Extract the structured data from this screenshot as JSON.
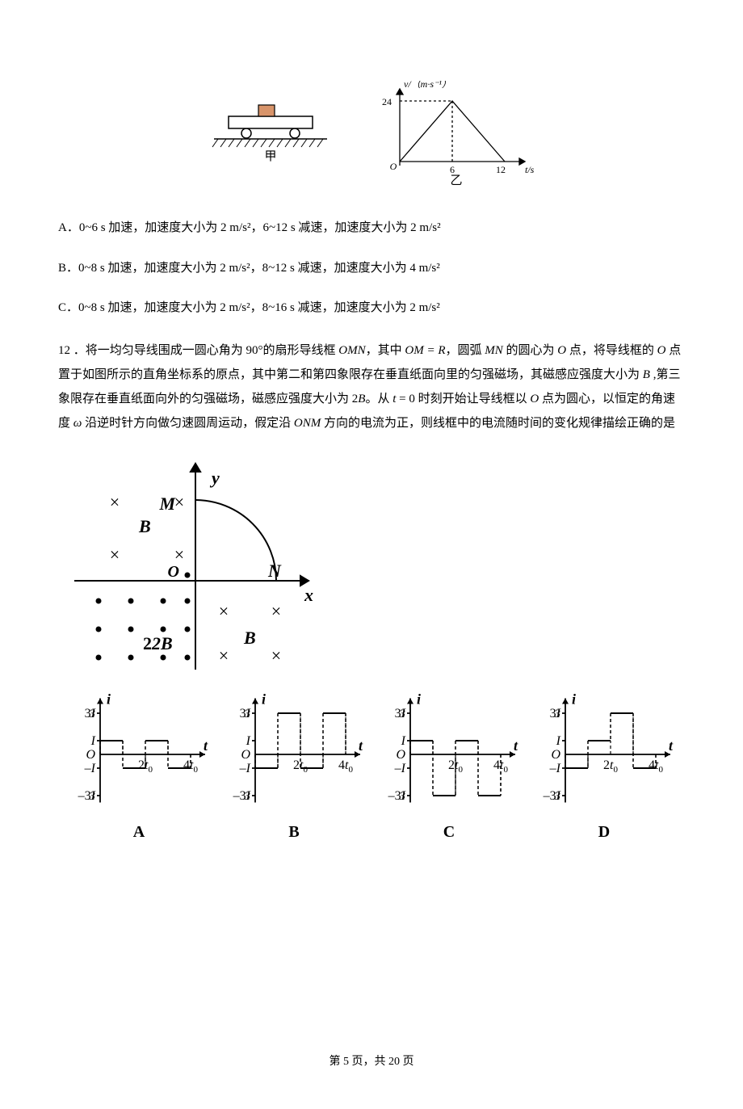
{
  "figure1": {
    "caption": "甲",
    "stroke": "#000000"
  },
  "figure2": {
    "caption": "乙",
    "yaxis_label": "v/（m·s⁻¹）",
    "xaxis_label": "t/s",
    "origin_label": "O",
    "ymax_label": "24",
    "xpeak_label": "6",
    "xend_label": "12",
    "stroke": "#000000"
  },
  "optionA": "A．0~6 s 加速，加速度大小为 2 m/s²，6~12 s 减速，加速度大小为 2 m/s²",
  "optionB": "B．0~8 s 加速，加速度大小为 2 m/s²，8~12 s 减速，加速度大小为 4 m/s²",
  "optionC": "C．0~8 s 加速，加速度大小为 2 m/s²，8~16 s 减速，加速度大小为 2 m/s²",
  "q12": {
    "prefix": "12 ．将一均匀导线围成一圆心角为 90°的扇形导线框 ",
    "seg1": "OMN",
    "seg2": "，其中 ",
    "seg3": "OM = R",
    "seg4": "，圆弧 ",
    "seg5": "MN",
    "seg6": " 的圆心为 ",
    "seg7": "O",
    "seg8": " 点，将导线框的 ",
    "seg9": "O",
    "seg10": " 点置于如图所示的直角坐标系的原点，其中第二和第四象限存在垂直纸面向里的匀强磁场，其磁感应强度大小为 ",
    "seg11": "B",
    "seg12": " ,第三象限存在垂直纸面向外的匀强磁场，磁感应强度大小为 2",
    "seg13": "B",
    "seg14": "。从 ",
    "seg15": "t",
    "seg16": " = 0 时刻开始让导线框以 ",
    "seg17": "O",
    "seg18": " 点为圆心，以恒定的角速度 ",
    "seg19": "ω",
    "seg20": " 沿逆时针方向做匀速圆周运动，假定沿 ",
    "seg21": "ONM",
    "seg22": " 方向的电流为正，则线框中的电流随时间的变化规律描绘正确的是"
  },
  "mainDiagram": {
    "xlabel": "x",
    "ylabel": "y",
    "originLabel": "O",
    "Mlabel": "M",
    "Nlabel": "N",
    "B2label": "B",
    "B3label": "2B",
    "B4label": "B",
    "stroke": "#000000",
    "fontSize": 20,
    "fontStyle": "italic",
    "fontWeight": "bold"
  },
  "answerCharts": {
    "yaxis_label": "i",
    "xaxis_label": "t",
    "y_ticks_pos": [
      "3I",
      "I"
    ],
    "y_origin": "O",
    "y_ticks_neg": [
      "–I",
      "–3I"
    ],
    "x_ticks": [
      "2t₀",
      "4t₀"
    ],
    "stroke": "#000000",
    "fontSize": 16
  },
  "answers": {
    "A": {
      "label": "A",
      "pattern": [
        1,
        -1,
        1,
        -1
      ]
    },
    "B": {
      "label": "B",
      "pattern": [
        -1,
        3,
        -1,
        3
      ]
    },
    "C": {
      "label": "C",
      "pattern": [
        1,
        -3,
        1,
        -3
      ]
    },
    "D": {
      "label": "D",
      "pattern": [
        -1,
        1,
        3,
        -1
      ]
    }
  },
  "footer": {
    "text1": "第 ",
    "page": "5",
    "text2": " 页，共 ",
    "total": "20",
    "text3": " 页"
  }
}
